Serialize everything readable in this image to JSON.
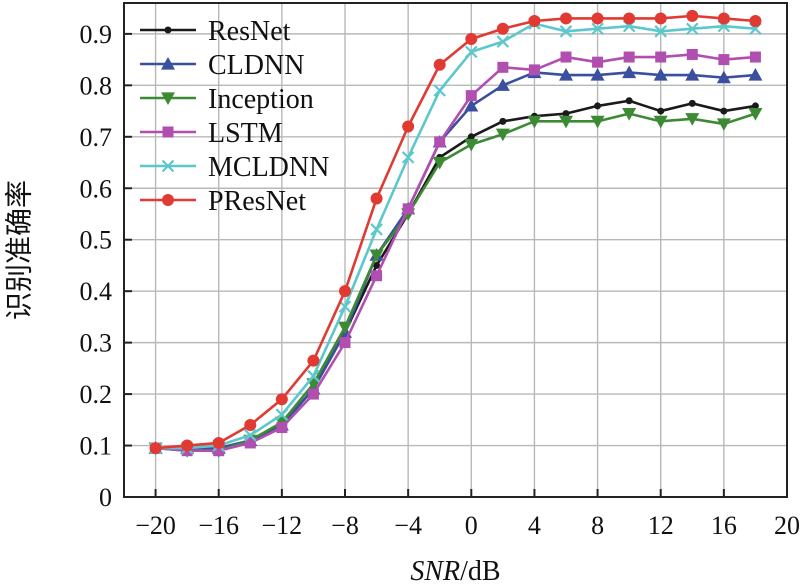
{
  "chart_data": {
    "type": "line",
    "title": "",
    "xlabel_italic": "SNR",
    "xlabel_unit": "/dB",
    "ylabel": "识别准确率",
    "xlim": [
      -22,
      20
    ],
    "ylim": [
      0,
      0.96
    ],
    "x_ticks": [
      -20,
      -16,
      -12,
      -8,
      -4,
      0,
      4,
      8,
      12,
      16,
      20
    ],
    "x_tick_labels": [
      "−20",
      "−16",
      "−12",
      "−8",
      "−4",
      "0",
      "4",
      "8",
      "12",
      "16",
      "20"
    ],
    "y_ticks": [
      0,
      0.1,
      0.2,
      0.3,
      0.4,
      0.5,
      0.6,
      0.7,
      0.8,
      0.9
    ],
    "y_tick_labels": [
      "0",
      "0.1",
      "0.2",
      "0.3",
      "0.4",
      "0.5",
      "0.6",
      "0.7",
      "0.8",
      "0.9"
    ],
    "grid": true,
    "legend_position": "top-left",
    "x": [
      -20,
      -18,
      -16,
      -14,
      -12,
      -10,
      -8,
      -6,
      -4,
      -2,
      0,
      2,
      4,
      6,
      8,
      10,
      12,
      14,
      16,
      18
    ],
    "series": [
      {
        "name": "ResNet",
        "color": "#1a1a1a",
        "marker": "dot",
        "values": [
          0.095,
          0.095,
          0.095,
          0.105,
          0.14,
          0.21,
          0.32,
          0.45,
          0.55,
          0.66,
          0.7,
          0.73,
          0.74,
          0.745,
          0.76,
          0.77,
          0.75,
          0.765,
          0.75,
          0.76
        ]
      },
      {
        "name": "CLDNN",
        "color": "#3a4fa0",
        "marker": "triangle-up",
        "values": [
          0.095,
          0.095,
          0.095,
          0.11,
          0.14,
          0.21,
          0.32,
          0.47,
          0.56,
          0.69,
          0.76,
          0.8,
          0.825,
          0.82,
          0.82,
          0.825,
          0.82,
          0.82,
          0.815,
          0.82
        ]
      },
      {
        "name": "Inception",
        "color": "#3d8a34",
        "marker": "triangle-down",
        "values": [
          0.095,
          0.09,
          0.09,
          0.11,
          0.145,
          0.22,
          0.33,
          0.47,
          0.55,
          0.65,
          0.685,
          0.705,
          0.73,
          0.73,
          0.73,
          0.745,
          0.73,
          0.735,
          0.725,
          0.745
        ]
      },
      {
        "name": "LSTM",
        "color": "#b04fb0",
        "marker": "square",
        "values": [
          0.095,
          0.09,
          0.09,
          0.105,
          0.135,
          0.2,
          0.3,
          0.43,
          0.56,
          0.69,
          0.78,
          0.835,
          0.83,
          0.855,
          0.845,
          0.855,
          0.855,
          0.86,
          0.85,
          0.855
        ]
      },
      {
        "name": "MCLDNN",
        "color": "#5cc8cc",
        "marker": "x",
        "values": [
          0.095,
          0.095,
          0.1,
          0.12,
          0.16,
          0.235,
          0.37,
          0.52,
          0.66,
          0.79,
          0.865,
          0.885,
          0.92,
          0.905,
          0.91,
          0.915,
          0.905,
          0.91,
          0.915,
          0.91
        ]
      },
      {
        "name": "PResNet",
        "color": "#e03a32",
        "marker": "circle",
        "values": [
          0.095,
          0.1,
          0.105,
          0.14,
          0.19,
          0.265,
          0.4,
          0.58,
          0.72,
          0.84,
          0.89,
          0.91,
          0.925,
          0.93,
          0.93,
          0.93,
          0.93,
          0.935,
          0.93,
          0.925
        ]
      }
    ]
  }
}
